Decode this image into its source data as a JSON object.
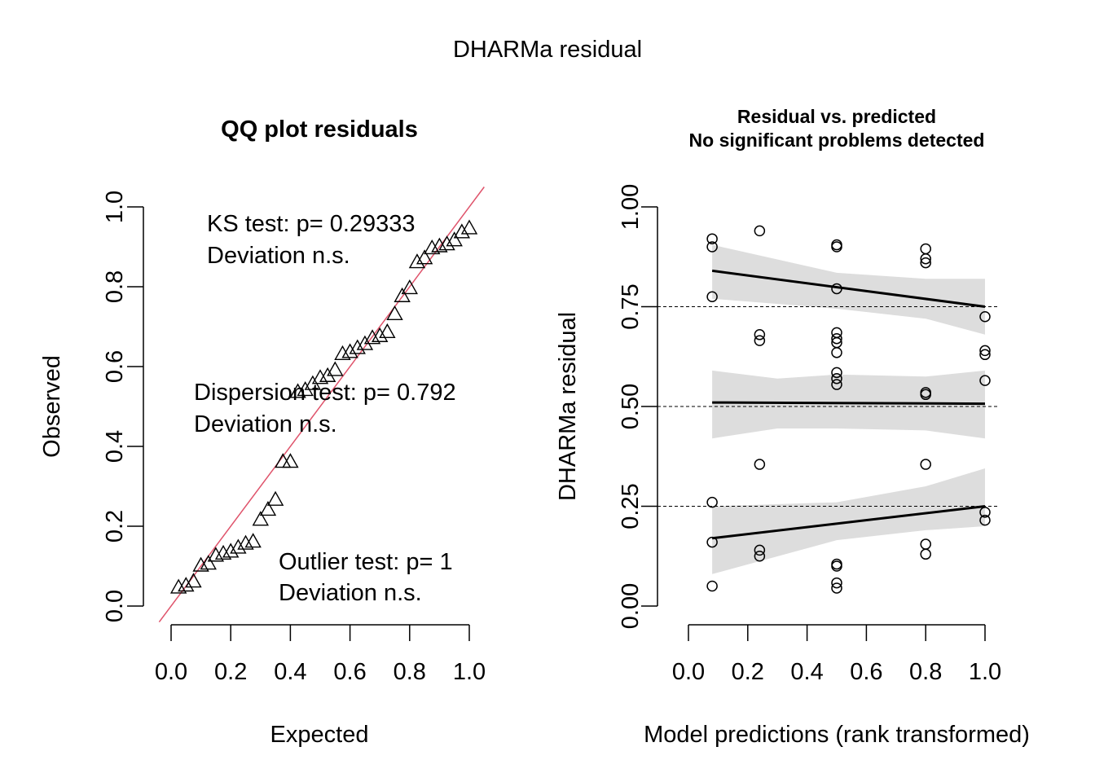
{
  "figure_title": "DHARMa residual",
  "chart_data": [
    {
      "type": "scatter",
      "title": "QQ plot residuals",
      "xlabel": "Expected",
      "ylabel": "Observed",
      "xlim": [
        0,
        1
      ],
      "ylim": [
        0,
        1
      ],
      "xticks": [
        "0.0",
        "0.2",
        "0.4",
        "0.6",
        "0.8",
        "1.0"
      ],
      "yticks": [
        "0.0",
        "0.2",
        "0.4",
        "0.6",
        "0.8",
        "1.0"
      ],
      "reference_line": {
        "slope": 1,
        "intercept": 0,
        "color": "#DF536B"
      },
      "marker": "triangle",
      "annotations": {
        "ks": [
          "KS test: p= 0.29333",
          "Deviation  n.s."
        ],
        "dispersion": [
          "Dispersion test: p= 0.792",
          "Deviation  n.s."
        ],
        "outlier": [
          "Outlier test: p= 1",
          "Deviation  n.s."
        ]
      },
      "points": [
        [
          0.025,
          0.045
        ],
        [
          0.05,
          0.05
        ],
        [
          0.075,
          0.06
        ],
        [
          0.1,
          0.1
        ],
        [
          0.125,
          0.105
        ],
        [
          0.15,
          0.125
        ],
        [
          0.175,
          0.13
        ],
        [
          0.2,
          0.135
        ],
        [
          0.225,
          0.145
        ],
        [
          0.25,
          0.155
        ],
        [
          0.275,
          0.16
        ],
        [
          0.3,
          0.215
        ],
        [
          0.325,
          0.24
        ],
        [
          0.35,
          0.265
        ],
        [
          0.375,
          0.36
        ],
        [
          0.4,
          0.36
        ],
        [
          0.425,
          0.535
        ],
        [
          0.45,
          0.54
        ],
        [
          0.475,
          0.555
        ],
        [
          0.5,
          0.57
        ],
        [
          0.525,
          0.575
        ],
        [
          0.55,
          0.59
        ],
        [
          0.575,
          0.63
        ],
        [
          0.6,
          0.635
        ],
        [
          0.625,
          0.645
        ],
        [
          0.65,
          0.655
        ],
        [
          0.675,
          0.67
        ],
        [
          0.7,
          0.675
        ],
        [
          0.725,
          0.685
        ],
        [
          0.75,
          0.73
        ],
        [
          0.775,
          0.775
        ],
        [
          0.8,
          0.795
        ],
        [
          0.825,
          0.86
        ],
        [
          0.85,
          0.87
        ],
        [
          0.875,
          0.895
        ],
        [
          0.9,
          0.9
        ],
        [
          0.925,
          0.905
        ],
        [
          0.95,
          0.915
        ],
        [
          0.975,
          0.935
        ],
        [
          1.0,
          0.945
        ]
      ]
    },
    {
      "type": "scatter",
      "title": "Residual vs. predicted",
      "subtitle": "No significant problems detected",
      "xlabel": "Model predictions (rank transformed)",
      "ylabel": "DHARMa residual",
      "xlim": [
        0,
        1
      ],
      "ylim": [
        0,
        1
      ],
      "xticks": [
        "0.0",
        "0.2",
        "0.4",
        "0.6",
        "0.8",
        "1.0"
      ],
      "yticks": [
        "0.00",
        "0.25",
        "0.50",
        "0.75",
        "1.00"
      ],
      "reference_lines_y": [
        0.25,
        0.5,
        0.75
      ],
      "marker": "circle",
      "points": [
        [
          0.08,
          0.05
        ],
        [
          0.08,
          0.16
        ],
        [
          0.08,
          0.26
        ],
        [
          0.08,
          0.775
        ],
        [
          0.08,
          0.9
        ],
        [
          0.08,
          0.92
        ],
        [
          0.24,
          0.125
        ],
        [
          0.24,
          0.14
        ],
        [
          0.24,
          0.355
        ],
        [
          0.24,
          0.665
        ],
        [
          0.24,
          0.68
        ],
        [
          0.24,
          0.94
        ],
        [
          0.5,
          0.045
        ],
        [
          0.5,
          0.058
        ],
        [
          0.5,
          0.1
        ],
        [
          0.5,
          0.105
        ],
        [
          0.5,
          0.555
        ],
        [
          0.5,
          0.57
        ],
        [
          0.5,
          0.585
        ],
        [
          0.5,
          0.635
        ],
        [
          0.5,
          0.66
        ],
        [
          0.5,
          0.67
        ],
        [
          0.5,
          0.685
        ],
        [
          0.5,
          0.795
        ],
        [
          0.5,
          0.9
        ],
        [
          0.5,
          0.905
        ],
        [
          0.8,
          0.13
        ],
        [
          0.8,
          0.155
        ],
        [
          0.8,
          0.355
        ],
        [
          0.8,
          0.53
        ],
        [
          0.8,
          0.535
        ],
        [
          0.8,
          0.86
        ],
        [
          0.8,
          0.87
        ],
        [
          0.8,
          0.895
        ],
        [
          1.0,
          0.215
        ],
        [
          1.0,
          0.235
        ],
        [
          1.0,
          0.565
        ],
        [
          1.0,
          0.63
        ],
        [
          1.0,
          0.64
        ],
        [
          1.0,
          0.725
        ]
      ],
      "quantile_fits": [
        {
          "quantile": 0.25,
          "line": [
            [
              0.08,
              0.17
            ],
            [
              1.0,
              0.25
            ]
          ],
          "band_upper": [
            [
              0.08,
              0.25
            ],
            [
              0.5,
              0.26
            ],
            [
              0.8,
              0.3
            ],
            [
              1.0,
              0.345
            ]
          ],
          "band_lower": [
            [
              0.08,
              0.08
            ],
            [
              0.5,
              0.165
            ],
            [
              0.8,
              0.19
            ],
            [
              1.0,
              0.2
            ]
          ]
        },
        {
          "quantile": 0.5,
          "line": [
            [
              0.08,
              0.51
            ],
            [
              1.0,
              0.507
            ]
          ],
          "band_upper": [
            [
              0.08,
              0.59
            ],
            [
              0.3,
              0.57
            ],
            [
              0.5,
              0.58
            ],
            [
              0.8,
              0.575
            ],
            [
              1.0,
              0.59
            ]
          ],
          "band_lower": [
            [
              0.08,
              0.42
            ],
            [
              0.3,
              0.445
            ],
            [
              0.5,
              0.445
            ],
            [
              0.8,
              0.44
            ],
            [
              1.0,
              0.42
            ]
          ]
        },
        {
          "quantile": 0.75,
          "line": [
            [
              0.08,
              0.84
            ],
            [
              1.0,
              0.75
            ]
          ],
          "band_upper": [
            [
              0.08,
              0.905
            ],
            [
              0.5,
              0.835
            ],
            [
              0.8,
              0.82
            ],
            [
              1.0,
              0.82
            ]
          ],
          "band_lower": [
            [
              0.08,
              0.77
            ],
            [
              0.5,
              0.745
            ],
            [
              0.8,
              0.72
            ],
            [
              1.0,
              0.68
            ]
          ]
        }
      ]
    }
  ]
}
